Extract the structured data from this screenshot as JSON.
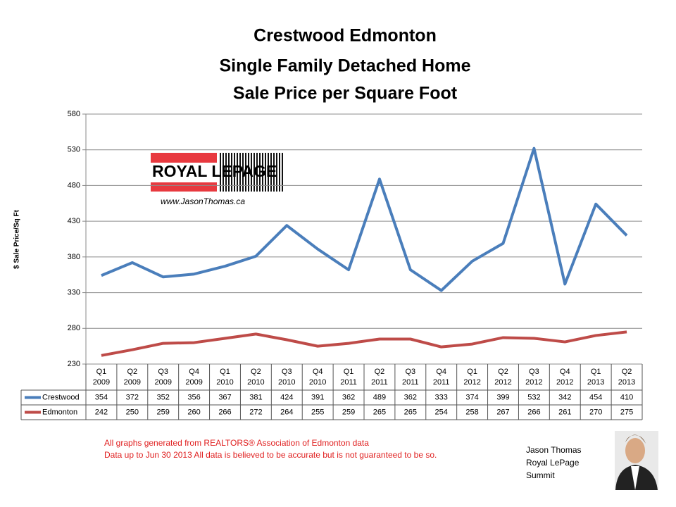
{
  "chart_data": {
    "type": "line",
    "title": [
      "Crestwood Edmonton",
      "Single Family Detached Home",
      "Sale Price per Square Foot"
    ],
    "y_label": "$ Sale Price/Sq Ft",
    "categories": [
      "Q1 2009",
      "Q2 2009",
      "Q3 2009",
      "Q4 2009",
      "Q1 2010",
      "Q2 2010",
      "Q3 2010",
      "Q4 2010",
      "Q1 2011",
      "Q2 2011",
      "Q3 2011",
      "Q4 2011",
      "Q1 2012",
      "Q2 2012",
      "Q3 2012",
      "Q4 2012",
      "Q1 2013",
      "Q2 2013"
    ],
    "series": [
      {
        "name": "Crestwood",
        "color": "#4a7ebb",
        "values": [
          354,
          372,
          352,
          356,
          367,
          381,
          424,
          391,
          362,
          489,
          362,
          333,
          374,
          399,
          532,
          342,
          454,
          410
        ]
      },
      {
        "name": "Edmonton",
        "color": "#be4b48",
        "values": [
          242,
          250,
          259,
          260,
          266,
          272,
          264,
          255,
          259,
          265,
          265,
          254,
          258,
          267,
          266,
          261,
          270,
          275
        ]
      }
    ],
    "ylim": [
      230,
      580
    ],
    "yticks": [
      230,
      280,
      330,
      380,
      430,
      480,
      530,
      580
    ],
    "grid": true
  },
  "logo": {
    "brand": "ROYAL LEPAGE",
    "url": "www.JasonThomas.ca"
  },
  "footnote": [
    "All graphs generated from REALTORS® Association of Edmonton data",
    "Data up to  Jun 30 2013  All data is believed to be accurate but is not guaranteed to be so."
  ],
  "signature": [
    "Jason Thomas",
    "Royal LePage",
    "Summit"
  ]
}
